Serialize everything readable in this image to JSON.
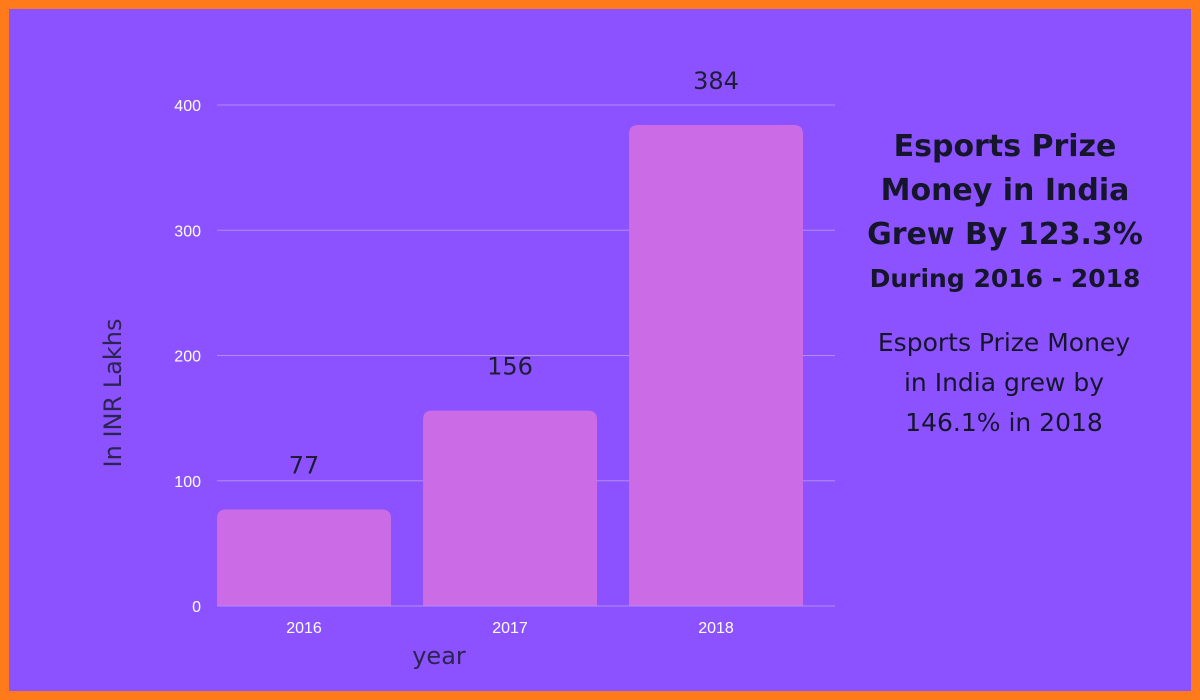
{
  "headline": {
    "line1": "Esports Prize Money in India Grew By 123.3%",
    "line2": "During 2016 - 2018"
  },
  "note": "Esports Prize Money in India grew by 146.1% in 2018",
  "colors": {
    "background": "#8c52ff",
    "border": "#ff7a1a",
    "bar": "#cb6ce6",
    "gridline": "#b08cf5",
    "tick_text": "#ffffff",
    "data_label_text": "#1f1d35"
  },
  "chart_data": {
    "type": "bar",
    "categories": [
      "2016",
      "2017",
      "2018"
    ],
    "values": [
      77,
      156,
      384
    ],
    "data_labels": [
      "77",
      "156",
      "384"
    ],
    "xlabel": "year",
    "ylabel": "In INR Lakhs",
    "ylim": [
      0,
      400
    ],
    "yticks": [
      0,
      100,
      200,
      300,
      400
    ],
    "grid": true,
    "legend": "none"
  }
}
